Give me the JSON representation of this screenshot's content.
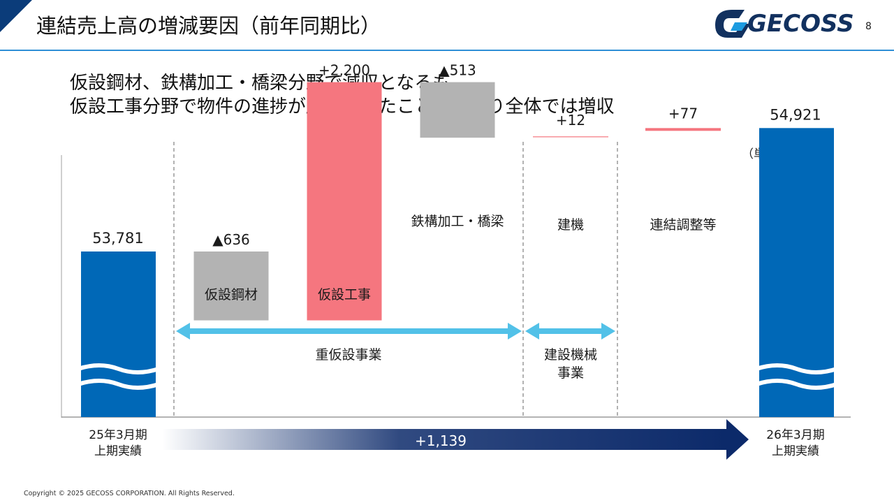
{
  "header": {
    "title": "連結売上高の増減要因（前年同期比）",
    "logo_text": "GECOSS",
    "page_number": "8"
  },
  "headline": {
    "line1": "仮設鋼材、鉄構加工・橋梁分野で減収となるも",
    "line2": "仮設工事分野で物件の進捗が順調だったこと等により全体では増収"
  },
  "colors": {
    "total_bar": "#0068b7",
    "increase_bar": "#f5767f",
    "decrease_bar": "#b3b3b3",
    "segment_arrow": "#52c1e8",
    "growth_arrow": "#0c2a6a",
    "header_rule": "#2f8fd6"
  },
  "chart_data": {
    "type": "waterfall",
    "unit_label": "（単位：百万円）",
    "start": {
      "label_line1": "25年3月期",
      "label_line2": "上期実績",
      "value": 53781,
      "value_label": "53,781"
    },
    "end": {
      "label_line1": "26年3月期",
      "label_line2": "上期実績",
      "value": 54921,
      "value_label": "54,921"
    },
    "changes": [
      {
        "category": "仮設鋼材",
        "value": -636,
        "value_label": "▲636",
        "segment": "重仮設事業"
      },
      {
        "category": "仮設工事",
        "value": 2200,
        "value_label": "+2,200",
        "segment": "重仮設事業"
      },
      {
        "category": "鉄構加工・橋梁",
        "value": -513,
        "value_label": "▲513",
        "segment": "重仮設事業"
      },
      {
        "category": "建機",
        "value": 12,
        "value_label": "+12",
        "segment": "建設機械事業"
      },
      {
        "category": "連結調整等",
        "value": 77,
        "value_label": "+77",
        "segment": ""
      }
    ],
    "segments": {
      "heavy_temporary": "重仮設事業",
      "construction_machinery_line1": "建設機械",
      "construction_machinery_line2": "事業"
    },
    "total_change": {
      "value": 1139,
      "value_label": "+1,139"
    },
    "axis_break": true
  },
  "footer": {
    "copyright": "Copyright © 2025 GECOSS CORPORATION. All Rights Reserved."
  }
}
